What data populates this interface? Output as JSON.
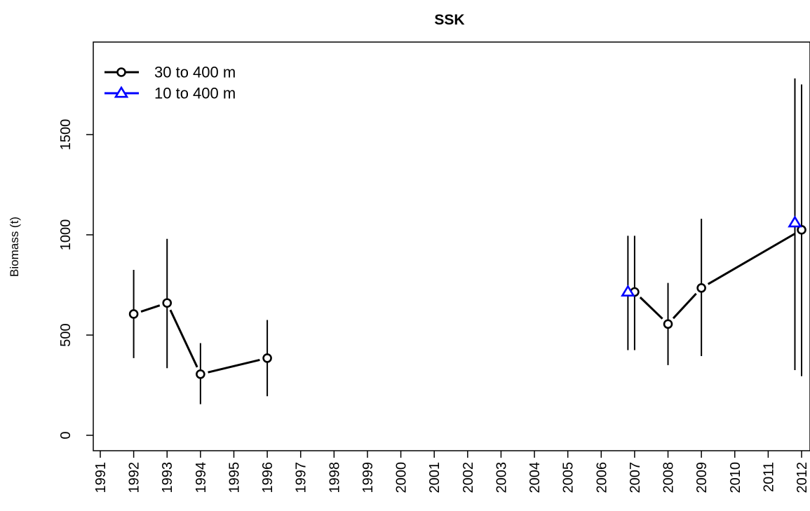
{
  "chart_data": {
    "type": "line",
    "title": "SSK",
    "xlabel": "",
    "ylabel": "Biomass (t)",
    "xlim": [
      1991,
      2012
    ],
    "ylim": [
      0,
      1750
    ],
    "x_ticks": [
      "1991",
      "1992",
      "1993",
      "1994",
      "1995",
      "1996",
      "1997",
      "1998",
      "1999",
      "2000",
      "2001",
      "2002",
      "2003",
      "2004",
      "2005",
      "2006",
      "2007",
      "2008",
      "2009",
      "2010",
      "2011",
      "2012"
    ],
    "y_ticks": [
      "0",
      "500",
      "1000",
      "1500"
    ],
    "grid": false,
    "legend_placement": "top-left",
    "series": [
      {
        "name": "30 to 400 m",
        "color": "#000000",
        "marker": "circle",
        "segments": [
          [
            {
              "x": 1992,
              "y": 605,
              "lo": 385,
              "hi": 825
            },
            {
              "x": 1993,
              "y": 660,
              "lo": 335,
              "hi": 980
            },
            {
              "x": 1994,
              "y": 305,
              "lo": 155,
              "hi": 460
            },
            {
              "x": 1996,
              "y": 385,
              "lo": 195,
              "hi": 575
            }
          ],
          [
            {
              "x": 2007,
              "y": 715,
              "lo": 425,
              "hi": 995
            },
            {
              "x": 2008,
              "y": 555,
              "lo": 350,
              "hi": 760
            },
            {
              "x": 2009,
              "y": 735,
              "lo": 395,
              "hi": 1080
            },
            {
              "x": 2012,
              "y": 1025,
              "lo": 295,
              "hi": 1750
            }
          ]
        ]
      },
      {
        "name": "10 to 400 m",
        "color": "#0000ff",
        "marker": "triangle",
        "segments": [
          [
            {
              "x": 2006.8,
              "y": 715,
              "lo": 425,
              "hi": 995
            }
          ],
          [
            {
              "x": 2011.8,
              "y": 1060,
              "lo": 325,
              "hi": 1780
            }
          ]
        ]
      }
    ]
  }
}
